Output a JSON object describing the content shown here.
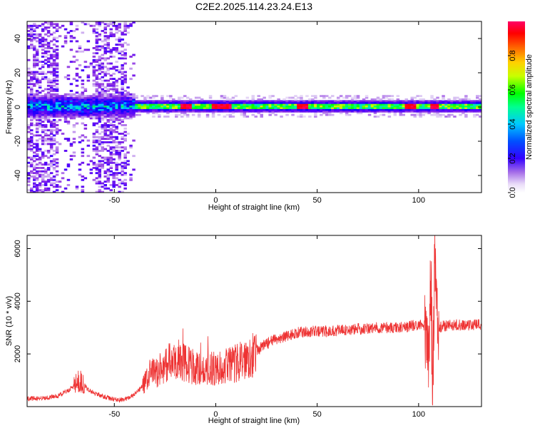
{
  "figure": {
    "title": "C2E2.2025.114.23.24.E13"
  },
  "chart_data": [
    {
      "type": "heatmap",
      "xlabel": "Height of straight line (km)",
      "ylabel": "Frequency (Hz)",
      "xlim": [
        -93,
        131
      ],
      "ylim": [
        -50,
        50
      ],
      "xticks": [
        -50,
        0,
        50,
        100
      ],
      "yticks": [
        -40,
        -20,
        0,
        20,
        40
      ],
      "colorbar": {
        "label": "Normalized spectral amplitude",
        "range": [
          0,
          1
        ],
        "ticks": [
          0.0,
          0.2,
          0.4,
          0.6,
          0.8
        ],
        "tick_labels": [
          "0.0",
          "0.2",
          "0.4",
          "0.6",
          "0.8"
        ],
        "colormap": [
          "#ffffff",
          "#d9c4f2",
          "#8a2be2",
          "#4b00ff",
          "#0000ff",
          "#00c8ff",
          "#00ff80",
          "#00ff00",
          "#c8ff00",
          "#ffd000",
          "#ff6a00",
          "#ff0000",
          "#ff0066"
        ]
      },
      "description_of_pattern": {
        "noisy_region_km": [
          -93,
          -40
        ],
        "band_center_hz": 0,
        "band_halfwidth_hz": 3,
        "peak_points_km": [
          -15,
          0,
          5,
          42,
          95,
          107
        ]
      }
    },
    {
      "type": "line",
      "xlabel": "Height of straight line (km)",
      "ylabel": "SNR (10 * v/v)",
      "xlim": [
        -93,
        131
      ],
      "ylim": [
        0,
        6500
      ],
      "xticks": [
        -50,
        0,
        50,
        100
      ],
      "yticks": [
        2000,
        4000,
        6000
      ],
      "series": [
        {
          "color": "#ee3333",
          "x": [
            -93,
            -85,
            -78,
            -72,
            -67,
            -63,
            -58,
            -52,
            -47,
            -42,
            -38,
            -35,
            -32,
            -29,
            -26,
            -23,
            -20,
            -17,
            -14,
            -11,
            -8,
            -5,
            -2,
            1,
            4,
            8,
            12,
            16,
            20,
            24,
            28,
            32,
            36,
            40,
            45,
            50,
            55,
            60,
            65,
            70,
            75,
            80,
            85,
            90,
            95,
            100,
            103,
            105,
            106,
            107,
            108,
            109,
            110,
            112,
            115,
            120,
            125,
            131
          ],
          "y": [
            300,
            320,
            400,
            650,
            1000,
            650,
            450,
            300,
            250,
            350,
            600,
            900,
            1300,
            1300,
            1500,
            1700,
            1600,
            1700,
            1600,
            1500,
            1400,
            1400,
            1450,
            1450,
            1500,
            1600,
            1700,
            1900,
            2100,
            2350,
            2500,
            2600,
            2700,
            2800,
            2850,
            2850,
            2850,
            2900,
            2900,
            2950,
            2950,
            3000,
            3000,
            3000,
            3050,
            3100,
            3100,
            2200,
            4500,
            1000,
            5800,
            3200,
            3000,
            3050,
            3100,
            3100,
            3100,
            3100
          ]
        }
      ]
    }
  ]
}
